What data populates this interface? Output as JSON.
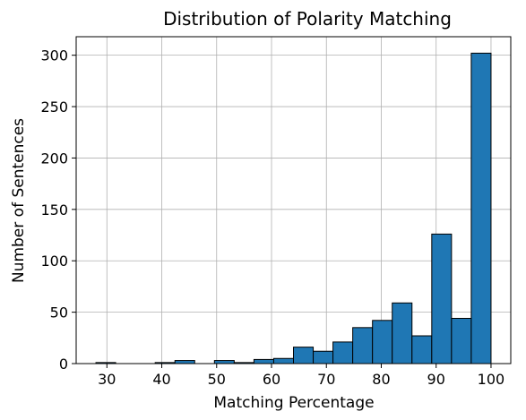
{
  "chart_data": {
    "type": "bar",
    "title": "Distribution of Polarity Matching",
    "xlabel": "Matching Percentage",
    "ylabel": "Number of Sentences",
    "bin_edges": [
      28.0,
      31.6,
      35.2,
      38.8,
      42.4,
      46.0,
      49.6,
      53.2,
      56.8,
      60.4,
      64.0,
      67.6,
      71.2,
      74.8,
      78.4,
      82.0,
      85.6,
      89.2,
      92.8,
      96.4,
      100.0
    ],
    "values": [
      1,
      0,
      0,
      1,
      3,
      0,
      3,
      1,
      4,
      5,
      16,
      12,
      21,
      35,
      42,
      59,
      27,
      126,
      44,
      302
    ],
    "xlim": [
      24.4,
      103.6
    ],
    "ylim": [
      0,
      318
    ],
    "xticks": [
      "30",
      "40",
      "50",
      "60",
      "70",
      "80",
      "90",
      "100"
    ],
    "yticks": [
      "0",
      "50",
      "100",
      "150",
      "200",
      "250",
      "300"
    ],
    "bar_color": "#1f77b4",
    "edge_color": "#000000",
    "grid": true
  }
}
